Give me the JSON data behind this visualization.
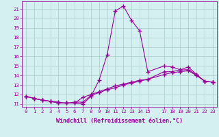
{
  "xlabel": "Windchill (Refroidissement éolien,°C)",
  "ylabel": "",
  "bg_color": "#d5f0f0",
  "line_color": "#990099",
  "xlim": [
    -0.5,
    23.5
  ],
  "ylim": [
    10.7,
    21.8
  ],
  "xticks": [
    0,
    1,
    2,
    3,
    4,
    5,
    6,
    7,
    8,
    9,
    10,
    11,
    12,
    13,
    14,
    15,
    17,
    18,
    19,
    20,
    21,
    22,
    23
  ],
  "yticks": [
    11,
    12,
    13,
    14,
    15,
    16,
    17,
    18,
    19,
    20,
    21
  ],
  "series1_x": [
    0,
    1,
    2,
    3,
    4,
    5,
    6,
    7,
    8,
    9,
    10,
    11,
    12,
    13,
    14,
    15,
    17,
    18,
    19,
    20,
    21,
    22,
    23
  ],
  "series1_y": [
    11.8,
    11.6,
    11.4,
    11.3,
    11.1,
    11.1,
    11.1,
    11.0,
    11.8,
    13.5,
    16.2,
    20.8,
    21.3,
    19.8,
    18.7,
    14.4,
    15.0,
    14.9,
    14.6,
    14.9,
    14.1,
    13.4,
    13.3
  ],
  "series2_x": [
    0,
    1,
    2,
    3,
    4,
    5,
    6,
    7,
    8,
    9,
    10,
    11,
    12,
    13,
    14,
    15,
    17,
    18,
    19,
    20,
    21,
    22,
    23
  ],
  "series2_y": [
    11.8,
    11.6,
    11.4,
    11.3,
    11.1,
    11.1,
    11.1,
    11.7,
    12.0,
    12.3,
    12.6,
    12.9,
    13.1,
    13.3,
    13.5,
    13.6,
    14.1,
    14.3,
    14.4,
    14.5,
    14.0,
    13.4,
    13.3
  ],
  "series3_x": [
    0,
    1,
    2,
    3,
    4,
    5,
    6,
    7,
    8,
    9,
    10,
    11,
    12,
    13,
    14,
    15,
    17,
    18,
    19,
    20,
    21,
    22,
    23
  ],
  "series3_y": [
    11.8,
    11.6,
    11.4,
    11.3,
    11.2,
    11.1,
    11.2,
    11.2,
    11.9,
    12.2,
    12.5,
    12.7,
    13.0,
    13.2,
    13.4,
    13.6,
    14.4,
    14.4,
    14.6,
    14.6,
    14.1,
    13.4,
    13.3
  ],
  "grid_color": "#aacccc",
  "marker": "+",
  "marker_size": 4,
  "linewidth": 0.8,
  "tick_fontsize": 5.2,
  "label_fontsize": 6.0
}
